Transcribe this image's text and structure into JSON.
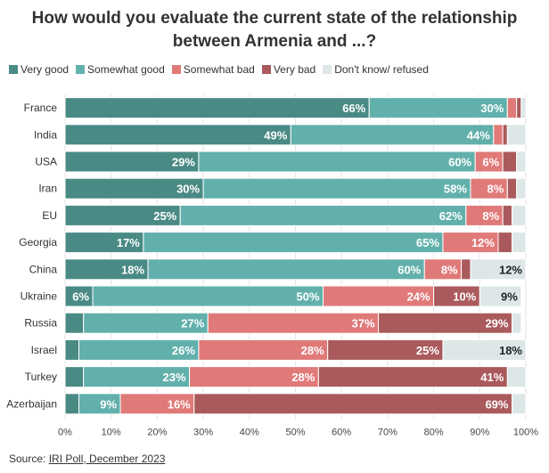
{
  "title_line1": "How would you evaluate the current state of the relationship",
  "title_line2": "between Armenia and ...?",
  "source_prefix": "Source: ",
  "source_link": "IRI Poll, December 2023",
  "chart_data": {
    "type": "bar",
    "orientation": "horizontal",
    "stacked": true,
    "xlim": [
      0,
      100
    ],
    "x_ticks": [
      "0%",
      "10%",
      "20%",
      "30%",
      "40%",
      "50%",
      "60%",
      "70%",
      "80%",
      "90%",
      "100%"
    ],
    "legend_position": "top-left",
    "grid": true,
    "categories": [
      "France",
      "India",
      "USA",
      "Iran",
      "EU",
      "Georgia",
      "China",
      "Ukraine",
      "Russia",
      "Israel",
      "Turkey",
      "Azerbaijan"
    ],
    "series": [
      {
        "name": "Very good",
        "color": "#4a8a85",
        "text_color": "#ffffff",
        "values": [
          66,
          49,
          29,
          30,
          25,
          17,
          18,
          6,
          4,
          3,
          4,
          3
        ],
        "labels": [
          "66%",
          "49%",
          "29%",
          "30%",
          "25%",
          "17%",
          "18%",
          "6%",
          "",
          "",
          "",
          ""
        ]
      },
      {
        "name": "Somewhat good",
        "color": "#62b0ac",
        "text_color": "#ffffff",
        "values": [
          30,
          44,
          60,
          58,
          62,
          65,
          60,
          50,
          27,
          26,
          23,
          9
        ],
        "labels": [
          "30%",
          "44%",
          "60%",
          "58%",
          "62%",
          "65%",
          "60%",
          "50%",
          "27%",
          "26%",
          "23%",
          "9%"
        ]
      },
      {
        "name": "Somewhat bad",
        "color": "#e07a79",
        "text_color": "#ffffff",
        "values": [
          2,
          2,
          6,
          8,
          8,
          12,
          8,
          24,
          37,
          28,
          28,
          16
        ],
        "labels": [
          "",
          "",
          "6%",
          "8%",
          "8%",
          "12%",
          "8%",
          "24%",
          "37%",
          "28%",
          "28%",
          "16%"
        ]
      },
      {
        "name": "Very bad",
        "color": "#aa5a5c",
        "text_color": "#ffffff",
        "values": [
          1,
          1,
          3,
          2,
          2,
          3,
          2,
          10,
          29,
          25,
          41,
          69
        ],
        "labels": [
          "",
          "",
          "",
          "",
          "",
          "",
          "",
          "10%",
          "29%",
          "25%",
          "41%",
          "69%"
        ]
      },
      {
        "name": "Don't know/ refused",
        "color": "#dde7e7",
        "text_color": "#222222",
        "values": [
          1,
          4,
          2,
          2,
          3,
          3,
          12,
          9,
          2,
          18,
          4,
          3
        ],
        "labels": [
          "",
          "",
          "",
          "",
          "",
          "",
          "12%",
          "9%",
          "",
          "18%",
          "",
          ""
        ]
      }
    ]
  }
}
